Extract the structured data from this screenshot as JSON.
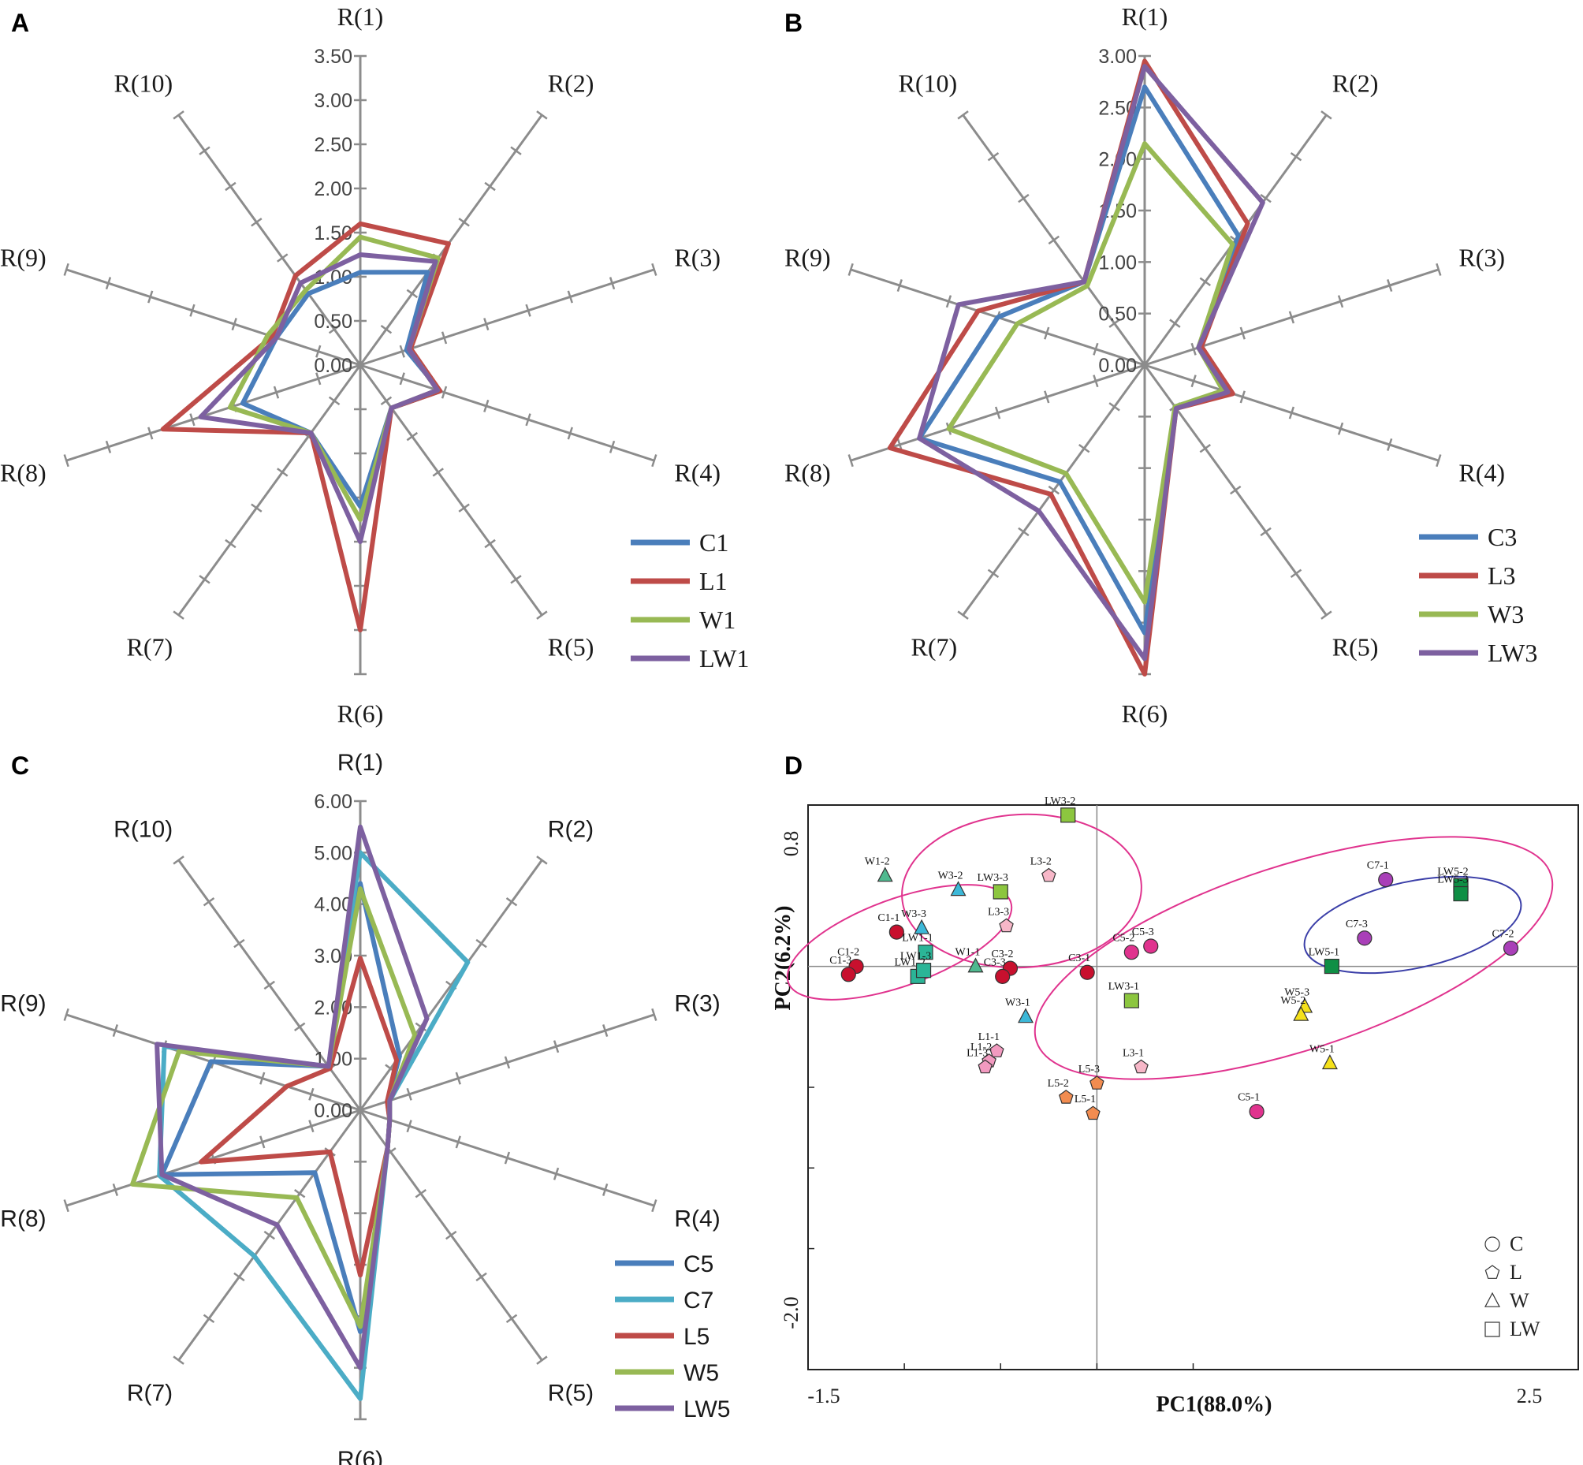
{
  "chart_data": [
    {
      "panel": "A",
      "type": "radar",
      "axes": [
        "R(1)",
        "R(2)",
        "R(3)",
        "R(4)",
        "R(5)",
        "R(6)",
        "R(7)",
        "R(8)",
        "R(9)",
        "R(10)"
      ],
      "rmax": 3.5,
      "ticks": [
        "0.00",
        "0.50",
        "1.00",
        "1.50",
        "2.00",
        "2.50",
        "3.00",
        "3.50"
      ],
      "series": [
        {
          "name": "C1",
          "color": "#4a7ebb",
          "values": [
            1.05,
            1.3,
            0.55,
            0.95,
            0.6,
            1.6,
            0.95,
            1.4,
            1.0,
            1.0
          ]
        },
        {
          "name": "L1",
          "color": "#be4b48",
          "values": [
            1.6,
            1.7,
            0.6,
            0.95,
            0.6,
            3.0,
            0.95,
            2.35,
            1.05,
            1.25
          ]
        },
        {
          "name": "W1",
          "color": "#98b954",
          "values": [
            1.45,
            1.5,
            0.58,
            0.92,
            0.6,
            1.75,
            0.95,
            1.55,
            1.1,
            1.05
          ]
        },
        {
          "name": "LW1",
          "color": "#7d60a0",
          "values": [
            1.25,
            1.45,
            0.58,
            0.92,
            0.6,
            2.0,
            0.95,
            1.9,
            1.0,
            1.15
          ]
        }
      ],
      "legend_position": "bottom-right"
    },
    {
      "panel": "B",
      "type": "radar",
      "axes": [
        "R(1)",
        "R(2)",
        "R(3)",
        "R(4)",
        "R(5)",
        "R(6)",
        "R(7)",
        "R(8)",
        "R(9)",
        "R(10)"
      ],
      "rmax": 3.0,
      "ticks": [
        "0.00",
        "0.50",
        "1.00",
        "1.50",
        "2.00",
        "2.50",
        "3.00"
      ],
      "series": [
        {
          "name": "C3",
          "color": "#4a7ebb",
          "values": [
            2.7,
            1.55,
            0.55,
            0.82,
            0.5,
            2.6,
            1.4,
            2.3,
            1.5,
            1.0
          ]
        },
        {
          "name": "L3",
          "color": "#be4b48",
          "values": [
            2.95,
            1.7,
            0.58,
            0.9,
            0.52,
            3.0,
            1.55,
            2.6,
            1.7,
            1.0
          ]
        },
        {
          "name": "W3",
          "color": "#98b954",
          "values": [
            2.15,
            1.45,
            0.55,
            0.8,
            0.5,
            2.3,
            1.3,
            2.0,
            1.3,
            0.95
          ]
        },
        {
          "name": "LW3",
          "color": "#7d60a0",
          "values": [
            2.9,
            1.95,
            0.55,
            0.85,
            0.52,
            2.85,
            1.75,
            2.3,
            1.9,
            1.0
          ]
        }
      ],
      "legend_position": "bottom-right"
    },
    {
      "panel": "C",
      "type": "radar",
      "axes": [
        "R(1)",
        "R(2)",
        "R(3)",
        "R(4)",
        "R(5)",
        "R(6)",
        "R(7)",
        "R(8)",
        "R(9)",
        "R(10)"
      ],
      "rmax": 6.0,
      "ticks": [
        "0.00",
        "1.00",
        "2.00",
        "3.00",
        "4.00",
        "5.00",
        "6.00"
      ],
      "series": [
        {
          "name": "C5",
          "color": "#4a7ebb",
          "values": [
            4.4,
            1.3,
            0.55,
            0.6,
            0.9,
            4.3,
            1.5,
            4.05,
            3.05,
            1.05
          ]
        },
        {
          "name": "C7",
          "color": "#4bacc6",
          "values": [
            5.0,
            3.55,
            0.6,
            0.6,
            0.9,
            5.6,
            3.5,
            4.1,
            4.0,
            1.05
          ]
        },
        {
          "name": "L5",
          "color": "#be4b48",
          "values": [
            2.95,
            1.2,
            0.55,
            0.6,
            0.9,
            3.2,
            1.0,
            3.25,
            1.5,
            1.0
          ]
        },
        {
          "name": "W5",
          "color": "#98b954",
          "values": [
            4.3,
            1.8,
            0.6,
            0.6,
            0.9,
            4.2,
            2.1,
            4.65,
            3.7,
            1.05
          ]
        },
        {
          "name": "LW5",
          "color": "#7d60a0",
          "values": [
            5.5,
            2.2,
            0.6,
            0.6,
            0.9,
            5.0,
            2.75,
            4.05,
            4.15,
            1.05
          ]
        }
      ],
      "legend_position": "bottom-right"
    },
    {
      "panel": "D",
      "type": "scatter",
      "xlabel": "PC1(88.0%)",
      "ylabel": "PC2(6.2%)",
      "xlim": [
        -1.5,
        2.5
      ],
      "ylim": [
        -2.0,
        0.8
      ],
      "x_tick_labels": [
        "-1.5",
        "2.5"
      ],
      "y_tick_labels": [
        "0.8",
        "-2.0"
      ],
      "legend": [
        {
          "shape": "circle",
          "label": "C"
        },
        {
          "shape": "pentagon",
          "label": "L"
        },
        {
          "shape": "triangle",
          "label": "W"
        },
        {
          "shape": "square",
          "label": "LW"
        }
      ],
      "points": [
        {
          "label": "C1-2",
          "x": -1.25,
          "y": 0.0,
          "shape": "circle",
          "color": "#c8102e"
        },
        {
          "label": "C1-3",
          "x": -1.29,
          "y": -0.04,
          "shape": "circle",
          "color": "#c8102e"
        },
        {
          "label": "C1-1",
          "x": -1.04,
          "y": 0.17,
          "shape": "circle",
          "color": "#c8102e"
        },
        {
          "label": "C3-2",
          "x": -0.45,
          "y": -0.01,
          "shape": "circle",
          "color": "#c8102e"
        },
        {
          "label": "C3-3",
          "x": -0.49,
          "y": -0.05,
          "shape": "circle",
          "color": "#c8102e"
        },
        {
          "label": "C3-1",
          "x": -0.05,
          "y": -0.03,
          "shape": "circle",
          "color": "#c8102e"
        },
        {
          "label": "C5-2",
          "x": 0.18,
          "y": 0.07,
          "shape": "circle",
          "color": "#e0338e"
        },
        {
          "label": "C5-3",
          "x": 0.28,
          "y": 0.1,
          "shape": "circle",
          "color": "#e0338e"
        },
        {
          "label": "C5-1",
          "x": 0.83,
          "y": -0.72,
          "shape": "circle",
          "color": "#e0338e"
        },
        {
          "label": "C7-1",
          "x": 1.5,
          "y": 0.43,
          "shape": "circle",
          "color": "#a93fb8"
        },
        {
          "label": "C7-3",
          "x": 1.39,
          "y": 0.14,
          "shape": "circle",
          "color": "#a93fb8"
        },
        {
          "label": "C7-2",
          "x": 2.15,
          "y": 0.09,
          "shape": "circle",
          "color": "#a93fb8"
        },
        {
          "label": "L3-2",
          "x": -0.25,
          "y": 0.45,
          "shape": "pentagon",
          "color": "#f7b7c8"
        },
        {
          "label": "L3-3",
          "x": -0.47,
          "y": 0.2,
          "shape": "pentagon",
          "color": "#f7b7c8"
        },
        {
          "label": "L3-1",
          "x": 0.23,
          "y": -0.5,
          "shape": "pentagon",
          "color": "#f7b7c8"
        },
        {
          "label": "L1-1",
          "x": -0.52,
          "y": -0.42,
          "shape": "pentagon",
          "color": "#f29ac0"
        },
        {
          "label": "L1-2",
          "x": -0.56,
          "y": -0.47,
          "shape": "pentagon",
          "color": "#f29ac0"
        },
        {
          "label": "L1-3",
          "x": -0.58,
          "y": -0.5,
          "shape": "pentagon",
          "color": "#f29ac0"
        },
        {
          "label": "L5-3",
          "x": 0.0,
          "y": -0.58,
          "shape": "pentagon",
          "color": "#f28c50"
        },
        {
          "label": "L5-2",
          "x": -0.16,
          "y": -0.65,
          "shape": "pentagon",
          "color": "#f28c50"
        },
        {
          "label": "L5-1",
          "x": -0.02,
          "y": -0.73,
          "shape": "pentagon",
          "color": "#f28c50"
        },
        {
          "label": "W1-2",
          "x": -1.1,
          "y": 0.45,
          "shape": "triangle",
          "color": "#4fb98f"
        },
        {
          "label": "W1-1",
          "x": -0.63,
          "y": 0.0,
          "shape": "triangle",
          "color": "#4fb98f"
        },
        {
          "label": "W3-2",
          "x": -0.72,
          "y": 0.38,
          "shape": "triangle",
          "color": "#3cb8d8"
        },
        {
          "label": "W3-3",
          "x": -0.91,
          "y": 0.19,
          "shape": "triangle",
          "color": "#3cb8d8"
        },
        {
          "label": "W3-1",
          "x": -0.37,
          "y": -0.25,
          "shape": "triangle",
          "color": "#3cb8d8"
        },
        {
          "label": "W5-3",
          "x": 1.08,
          "y": -0.2,
          "shape": "triangle",
          "color": "#f5e11a"
        },
        {
          "label": "W5-2",
          "x": 1.06,
          "y": -0.24,
          "shape": "triangle",
          "color": "#f5e11a"
        },
        {
          "label": "W5-1",
          "x": 1.21,
          "y": -0.48,
          "shape": "triangle",
          "color": "#f5e11a"
        },
        {
          "label": "LW1-1",
          "x": -0.89,
          "y": 0.07,
          "shape": "square",
          "color": "#2bb597"
        },
        {
          "label": "LW1-2",
          "x": -0.93,
          "y": -0.05,
          "shape": "square",
          "color": "#2bb597"
        },
        {
          "label": "LW1-3",
          "x": -0.9,
          "y": -0.02,
          "shape": "square",
          "color": "#2bb597"
        },
        {
          "label": "LW3-2",
          "x": -0.15,
          "y": 0.75,
          "shape": "square",
          "color": "#8cc63f"
        },
        {
          "label": "LW3-3",
          "x": -0.5,
          "y": 0.37,
          "shape": "square",
          "color": "#8cc63f"
        },
        {
          "label": "LW3-1",
          "x": 0.18,
          "y": -0.17,
          "shape": "square",
          "color": "#8cc63f"
        },
        {
          "label": "LW5-1",
          "x": 1.22,
          "y": 0.0,
          "shape": "square",
          "color": "#0f8f45"
        },
        {
          "label": "LW5-2",
          "x": 1.89,
          "y": 0.4,
          "shape": "square",
          "color": "#0f8f45"
        },
        {
          "label": "LW5-3",
          "x": 1.89,
          "y": 0.36,
          "shape": "square",
          "color": "#0f8f45"
        }
      ]
    }
  ]
}
